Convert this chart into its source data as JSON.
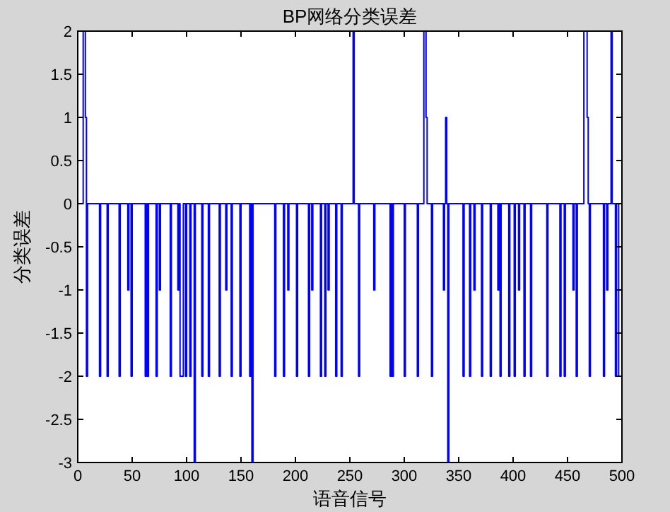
{
  "chart_data": {
    "type": "step",
    "title": "BP网络分类误差",
    "xlabel": "语音信号",
    "ylabel": "分类误差",
    "x": [
      0,
      5,
      7,
      8,
      9,
      20,
      21,
      27,
      28,
      38,
      39,
      46,
      47,
      49,
      50,
      62,
      63,
      64,
      65,
      72,
      73,
      75,
      76,
      85,
      86,
      92,
      93,
      94,
      97,
      99,
      100,
      103,
      104,
      107,
      108,
      114,
      115,
      120,
      121,
      130,
      131,
      136,
      137,
      141,
      142,
      149,
      150,
      158,
      159,
      160,
      161,
      181,
      182,
      189,
      190,
      193,
      194,
      201,
      202,
      212,
      213,
      215,
      216,
      223,
      224,
      227,
      228,
      230,
      231,
      237,
      238,
      242,
      243,
      253,
      254,
      258,
      259,
      272,
      273,
      287,
      288,
      289,
      290,
      300,
      301,
      312,
      313,
      318,
      320,
      321,
      325,
      326,
      336,
      337,
      338,
      339,
      340,
      341,
      354,
      355,
      360,
      361,
      364,
      365,
      371,
      372,
      379,
      380,
      386,
      387,
      388,
      389,
      396,
      397,
      401,
      402,
      405,
      406,
      410,
      411,
      416,
      417,
      431,
      432,
      443,
      444,
      447,
      448,
      455,
      456,
      458,
      459,
      465,
      468,
      469,
      470,
      471,
      483,
      484,
      486,
      487,
      490,
      491,
      494,
      495,
      497,
      500
    ],
    "series": [
      {
        "color": "#0000ff",
        "values": [
          0,
          2,
          1,
          -2,
          0,
          -2,
          0,
          -2,
          0,
          -2,
          0,
          -1,
          0,
          -2,
          0,
          -2,
          0,
          -2,
          0,
          -2,
          0,
          -1,
          0,
          -2,
          0,
          -1,
          0,
          -2,
          0,
          -2,
          0,
          -2,
          0,
          -3,
          0,
          -2,
          0,
          -2,
          0,
          -2,
          0,
          -1,
          0,
          -2,
          0,
          -2,
          0,
          -2,
          0,
          -3,
          0,
          -2,
          0,
          -2,
          0,
          -1,
          0,
          -2,
          0,
          -2,
          0,
          -1,
          0,
          -2,
          0,
          -2,
          0,
          -1,
          0,
          -2,
          0,
          -2,
          0,
          2,
          0,
          -2,
          0,
          -1,
          0,
          -2,
          0,
          -2,
          0,
          -2,
          0,
          -2,
          0,
          2,
          1,
          0,
          -2,
          0,
          -1,
          0,
          1,
          0,
          -3,
          0,
          -2,
          0,
          -2,
          0,
          -1,
          0,
          -2,
          0,
          -2,
          0,
          -1,
          0,
          -2,
          0,
          -2,
          0,
          -2,
          0,
          -1,
          0,
          -2,
          0,
          -2,
          0,
          -2,
          0,
          -2,
          0,
          -2,
          0,
          -1,
          0,
          -2,
          0,
          2,
          1,
          0,
          -2,
          0,
          -2,
          0,
          -1,
          0,
          2,
          0,
          -2,
          0,
          -2,
          -2
        ]
      }
    ],
    "xlim": [
      0,
      500
    ],
    "xticks": [
      0,
      50,
      100,
      150,
      200,
      250,
      300,
      350,
      400,
      450,
      500
    ],
    "ylim": [
      -3,
      2
    ],
    "yticks": [
      -3,
      -2.5,
      -2,
      -1.5,
      -1,
      -0.5,
      0,
      0.5,
      1,
      1.5,
      2
    ],
    "line_style": "solid",
    "marker": "none",
    "grid": false
  }
}
